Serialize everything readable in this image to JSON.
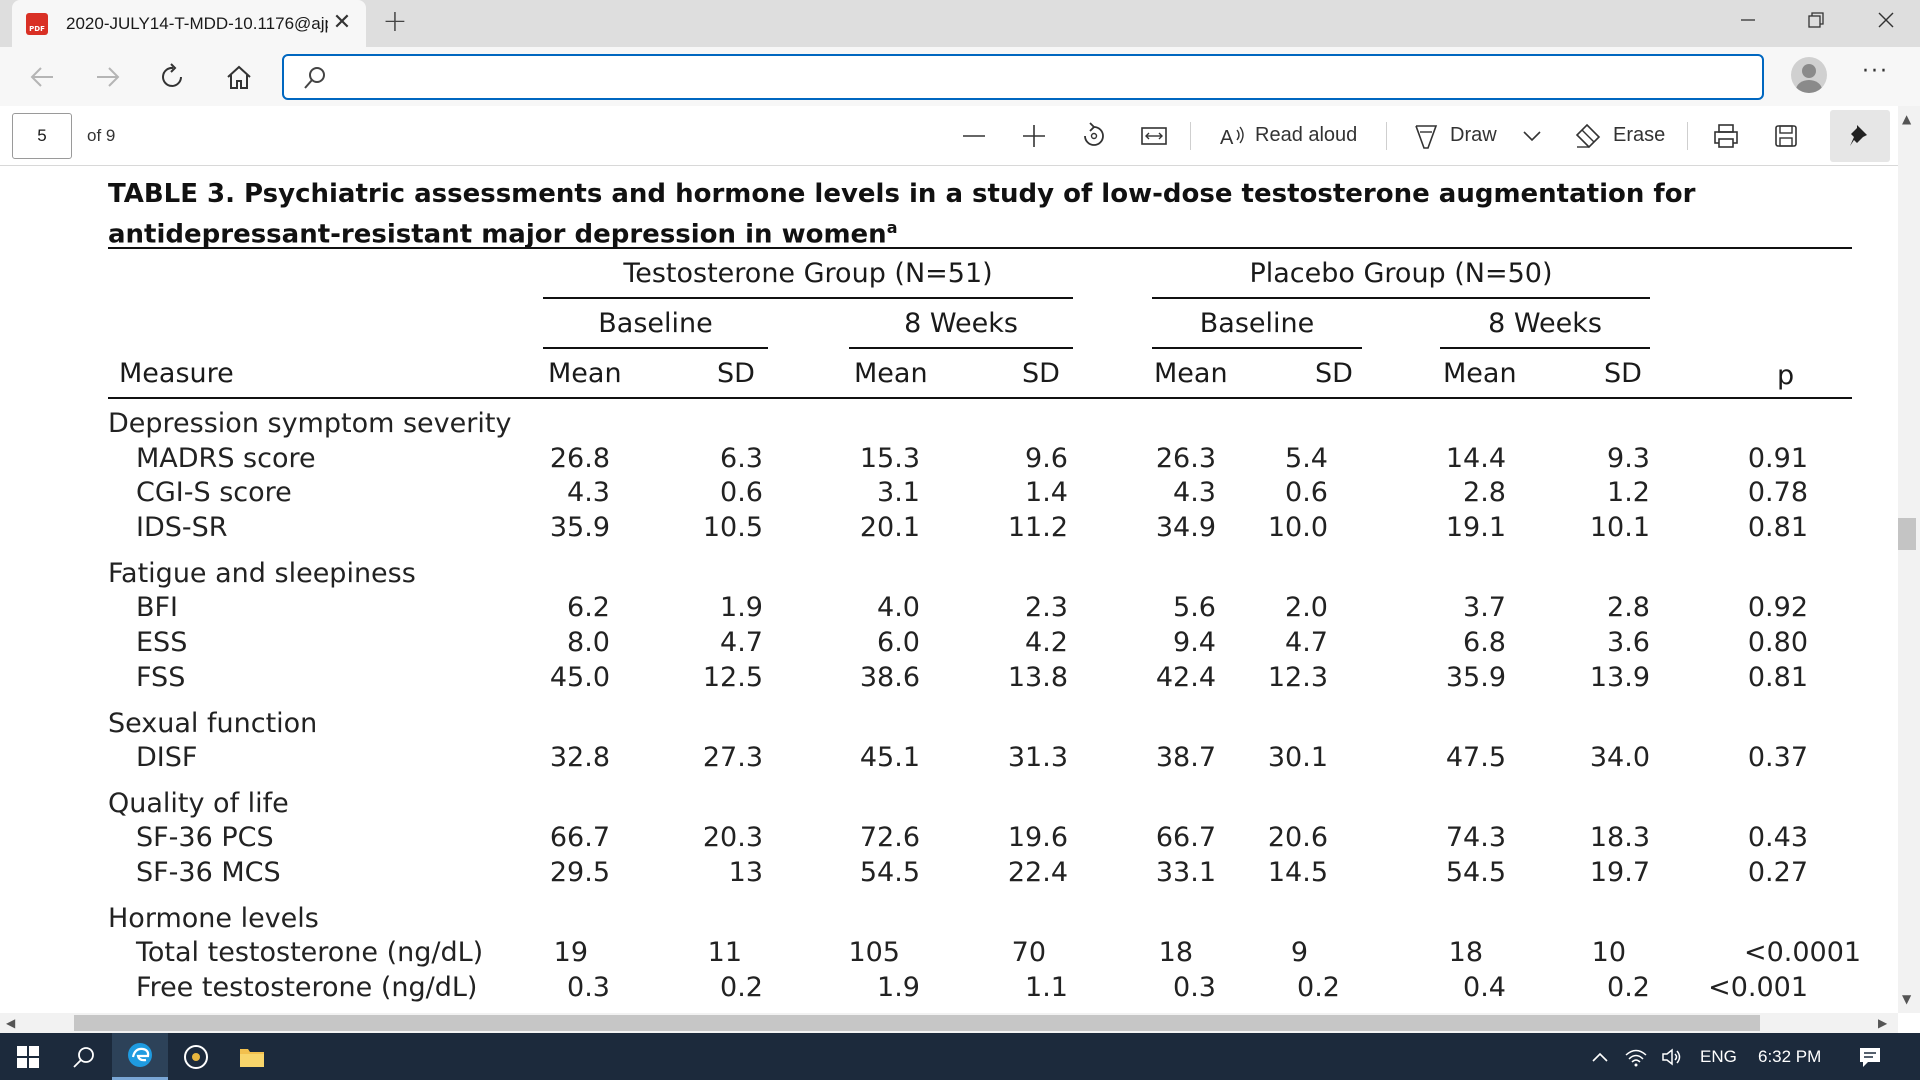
{
  "browser": {
    "tab_title": "2020-JULY14-T-MDD-10.1176@ajp",
    "favicon_label": "PDF",
    "new_tab_symbol": "+",
    "close_symbol": "✕",
    "address_value": "",
    "address_placeholder": ""
  },
  "pdf_toolbar": {
    "page_number": "5",
    "page_of": "of 9",
    "read_aloud_label": "Read aloud",
    "draw_label": "Draw",
    "erase_label": "Erase"
  },
  "document": {
    "title": "TABLE 3. Psychiatric assessments and hormone levels in a study of low-dose testosterone augmentation for antidepressant-resistant major depression in women",
    "title_footnote": "a",
    "groups": [
      "Testosterone Group (N=51)",
      "Placebo Group (N=50)"
    ],
    "timepoints": [
      "Baseline",
      "8 Weeks",
      "Baseline",
      "8 Weeks"
    ],
    "measure_header": "Measure",
    "stat_headers": [
      "Mean",
      "SD",
      "Mean",
      "SD",
      "Mean",
      "SD",
      "Mean",
      "SD"
    ],
    "p_header": "p",
    "sections": [
      {
        "label": "Depression symptom severity",
        "rows": [
          {
            "measure": "MADRS score",
            "values": [
              "26.8",
              "6.3",
              "15.3",
              "9.6",
              "26.3",
              "5.4",
              "14.4",
              "9.3"
            ],
            "p": "0.91"
          },
          {
            "measure": "CGI-S score",
            "values": [
              "4.3",
              "0.6",
              "3.1",
              "1.4",
              "4.3",
              "0.6",
              "2.8",
              "1.2"
            ],
            "p": "0.78"
          },
          {
            "measure": "IDS-SR",
            "values": [
              "35.9",
              "10.5",
              "20.1",
              "11.2",
              "34.9",
              "10.0",
              "19.1",
              "10.1"
            ],
            "p": "0.81"
          }
        ]
      },
      {
        "label": "Fatigue and sleepiness",
        "rows": [
          {
            "measure": "BFI",
            "values": [
              "6.2",
              "1.9",
              "4.0",
              "2.3",
              "5.6",
              "2.0",
              "3.7",
              "2.8"
            ],
            "p": "0.92"
          },
          {
            "measure": "ESS",
            "values": [
              "8.0",
              "4.7",
              "6.0",
              "4.2",
              "9.4",
              "4.7",
              "6.8",
              "3.6"
            ],
            "p": "0.80"
          },
          {
            "measure": "FSS",
            "values": [
              "45.0",
              "12.5",
              "38.6",
              "13.8",
              "42.4",
              "12.3",
              "35.9",
              "13.9"
            ],
            "p": "0.81"
          }
        ]
      },
      {
        "label": "Sexual function",
        "rows": [
          {
            "measure": "DISF",
            "values": [
              "32.8",
              "27.3",
              "45.1",
              "31.3",
              "38.7",
              "30.1",
              "47.5",
              "34.0"
            ],
            "p": "0.37"
          }
        ]
      },
      {
        "label": "Quality of life",
        "rows": [
          {
            "measure": "SF-36 PCS",
            "values": [
              "66.7",
              "20.3",
              "72.6",
              "19.6",
              "66.7",
              "20.6",
              "74.3",
              "18.3"
            ],
            "p": "0.43"
          },
          {
            "measure": "SF-36 MCS",
            "values": [
              "29.5",
              "13",
              "54.5",
              "22.4",
              "33.1",
              "14.5",
              "54.5",
              "19.7"
            ],
            "p": "0.27"
          }
        ]
      },
      {
        "label": "Hormone levels",
        "rows": [
          {
            "measure": "Total testosterone (ng/dL)",
            "values": [
              "19",
              "11",
              "105",
              "70",
              "18",
              "9",
              "18",
              "10"
            ],
            "p": "<0.0001"
          },
          {
            "measure": "Free testosterone (ng/dL)",
            "values": [
              "0.3",
              "0.2",
              "1.9",
              "1.1",
              "0.3",
              "0.2",
              "0.4",
              "0.2"
            ],
            "p": "<0.001"
          }
        ]
      }
    ]
  },
  "taskbar": {
    "language": "ENG",
    "time": "6:32 PM"
  },
  "colors": {
    "accent": "#0067c0",
    "taskbar": "#1c2a3c",
    "tabstrip": "#dedede"
  }
}
